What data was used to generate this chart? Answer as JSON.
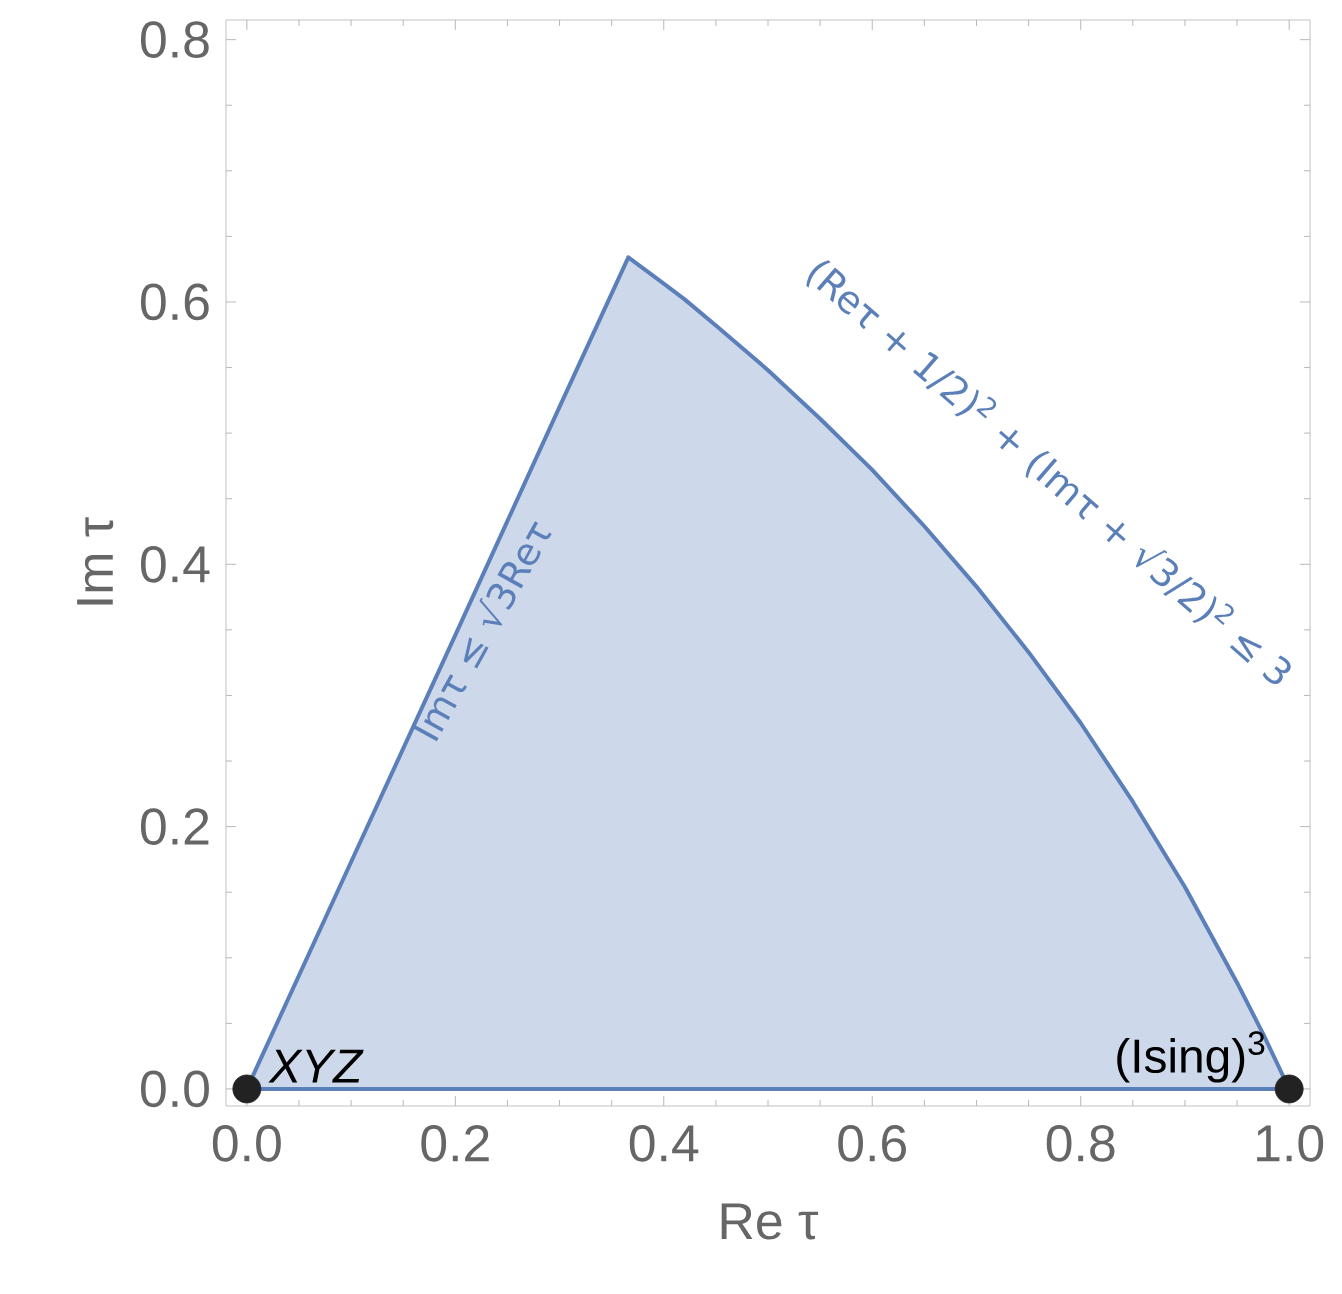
{
  "chart_data": {
    "type": "area",
    "xlabel": "Re τ",
    "ylabel": "Im τ",
    "series": [
      {
        "color": "#5b7fb8",
        "x": [
          0,
          0.1,
          0.2,
          0.3,
          0.366,
          0.4,
          0.42,
          0.45,
          0.5,
          0.55,
          0.6,
          0.65,
          0.7,
          0.75,
          0.8,
          0.85,
          0.9,
          0.95,
          0.975,
          1.0
        ],
        "values": [
          0,
          0.173,
          0.346,
          0.52,
          0.634,
          0.614,
          0.602,
          0.582,
          0.548,
          0.511,
          0.472,
          0.429,
          0.383,
          0.333,
          0.279,
          0.219,
          0.154,
          0.081,
          0.042,
          0
        ]
      },
      {
        "type": "scatter",
        "color": "#222222",
        "marker": "circle",
        "x": [
          0,
          1.0
        ],
        "values": [
          0,
          0
        ]
      }
    ],
    "annotations": [
      {
        "text": "*XYZ*",
        "x": 0,
        "y": 0
      },
      {
        "text": "(Ising)$^{3}$",
        "x": 1.0,
        "y": 0
      },
      "Imτ ≤ √3Reτ",
      "(Reτ + 1/2)$^{2}$ + (Imτ + √3/2)$^{2}$ ≤ 3"
    ],
    "xlim": [
      -0.02,
      1.02
    ],
    "ylim": [
      -0.013,
      0.815
    ],
    "xticks": [
      {
        "value": 0,
        "label": "0.0"
      },
      {
        "value": 0.2,
        "label": "0.2"
      },
      {
        "value": 0.4,
        "label": "0.4"
      },
      {
        "value": 0.6,
        "label": "0.6"
      },
      {
        "value": 0.8,
        "label": "0.8"
      },
      {
        "value": 1.0,
        "label": "1.0"
      }
    ],
    "yticks": [
      {
        "value": 0,
        "label": "0.0"
      },
      {
        "value": 0.2,
        "label": "0.2"
      },
      {
        "value": 0.4,
        "label": "0.4"
      },
      {
        "value": 0.6,
        "label": "0.6"
      },
      {
        "value": 0.8,
        "label": "0.8"
      }
    ],
    "grid": false
  }
}
